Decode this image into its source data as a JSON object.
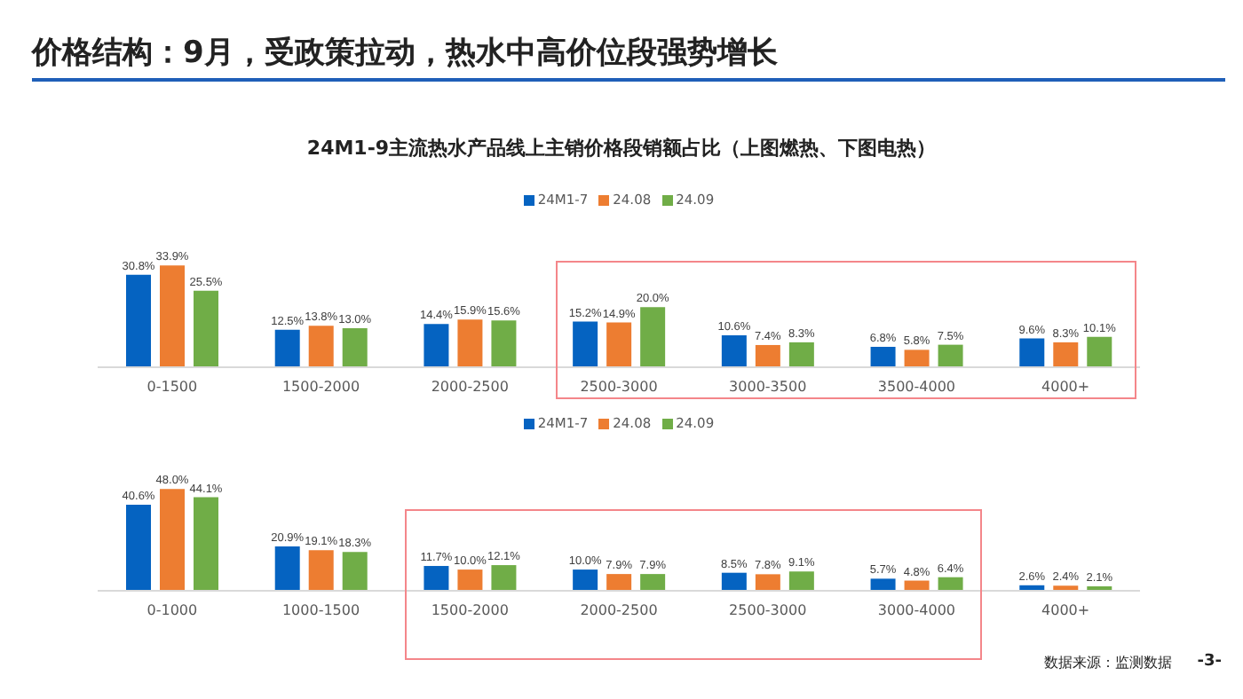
{
  "chart_data": [
    {
      "type": "bar",
      "title": "价格结构：9月，受政策拉动，热水中高价位段强势增长",
      "subtitle": "24M1-9主流热水产品线上主销价格段销额占比（上图燃热、下图电热）",
      "categories": [
        "0-1500",
        "1500-2000",
        "2000-2500",
        "2500-3000",
        "3000-3500",
        "3500-4000",
        "4000+"
      ],
      "series": [
        {
          "name": "24M1-7",
          "color": "#0563c1",
          "values": [
            30.8,
            12.5,
            14.4,
            15.2,
            10.6,
            6.8,
            9.6
          ],
          "value_labels": [
            "30.8%",
            "12.5%",
            "14.4%",
            "15.2%",
            "10.6%",
            "6.8%",
            "9.6%"
          ]
        },
        {
          "name": "24.08",
          "color": "#ed7d31",
          "values": [
            33.9,
            13.8,
            15.9,
            14.9,
            7.4,
            5.8,
            8.3
          ],
          "value_labels": [
            "33.9%",
            "13.8%",
            "15.9%",
            "14.9%",
            "7.4%",
            "5.8%",
            "8.3%"
          ]
        },
        {
          "name": "24.09",
          "color": "#70ad47",
          "values": [
            25.5,
            13.0,
            15.6,
            20.0,
            8.3,
            7.5,
            10.1
          ],
          "value_labels": [
            "25.5%",
            "13.0%",
            "15.6%",
            "20.0%",
            "8.3%",
            "7.5%",
            "10.1%"
          ]
        }
      ],
      "legend": "top"
    },
    {
      "type": "bar",
      "categories": [
        "0-1000",
        "1000-1500",
        "1500-2000",
        "2000-2500",
        "2500-3000",
        "3000-4000",
        "4000+"
      ],
      "series": [
        {
          "name": "24M1-7",
          "color": "#0563c1",
          "values": [
            40.6,
            20.9,
            11.7,
            10.0,
            8.5,
            5.7,
            2.6
          ],
          "value_labels": [
            "40.6%",
            "20.9%",
            "11.7%",
            "10.0%",
            "8.5%",
            "5.7%",
            "2.6%"
          ]
        },
        {
          "name": "24.08",
          "color": "#ed7d31",
          "values": [
            48.0,
            19.1,
            10.0,
            7.9,
            7.8,
            4.8,
            2.4
          ],
          "value_labels": [
            "48.0%",
            "19.1%",
            "10.0%",
            "7.9%",
            "7.8%",
            "4.8%",
            "2.4%"
          ]
        },
        {
          "name": "24.09",
          "color": "#70ad47",
          "values": [
            44.1,
            18.3,
            12.1,
            7.9,
            9.1,
            6.4,
            2.1
          ],
          "value_labels": [
            "44.1%",
            "18.3%",
            "12.1%",
            "7.9%",
            "9.1%",
            "6.4%",
            "2.1%"
          ]
        }
      ],
      "legend": "top",
      "annotations": [
        "数据来源：监测数据",
        "-3-"
      ]
    }
  ]
}
